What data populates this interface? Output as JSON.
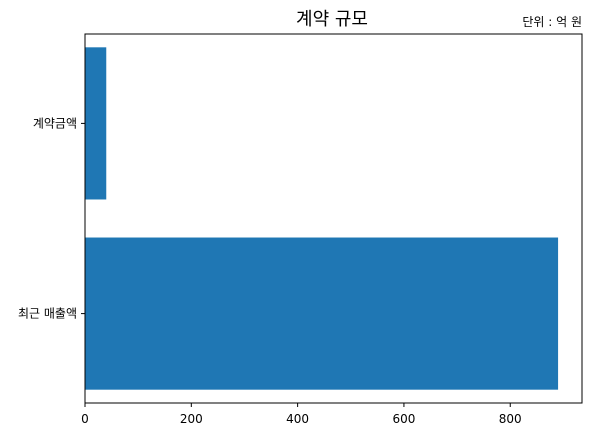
{
  "chart_data": {
    "type": "bar",
    "orientation": "horizontal",
    "title": "계약 규모",
    "unit_note": "단위 : 억 원",
    "categories": [
      "최근 매출액",
      "계약금액"
    ],
    "values": [
      890,
      40
    ],
    "xlim": [
      0,
      935
    ],
    "xticks": [
      0,
      200,
      400,
      600,
      800
    ],
    "bar_color": "#1f77b4",
    "grid": false,
    "legend": "none"
  }
}
